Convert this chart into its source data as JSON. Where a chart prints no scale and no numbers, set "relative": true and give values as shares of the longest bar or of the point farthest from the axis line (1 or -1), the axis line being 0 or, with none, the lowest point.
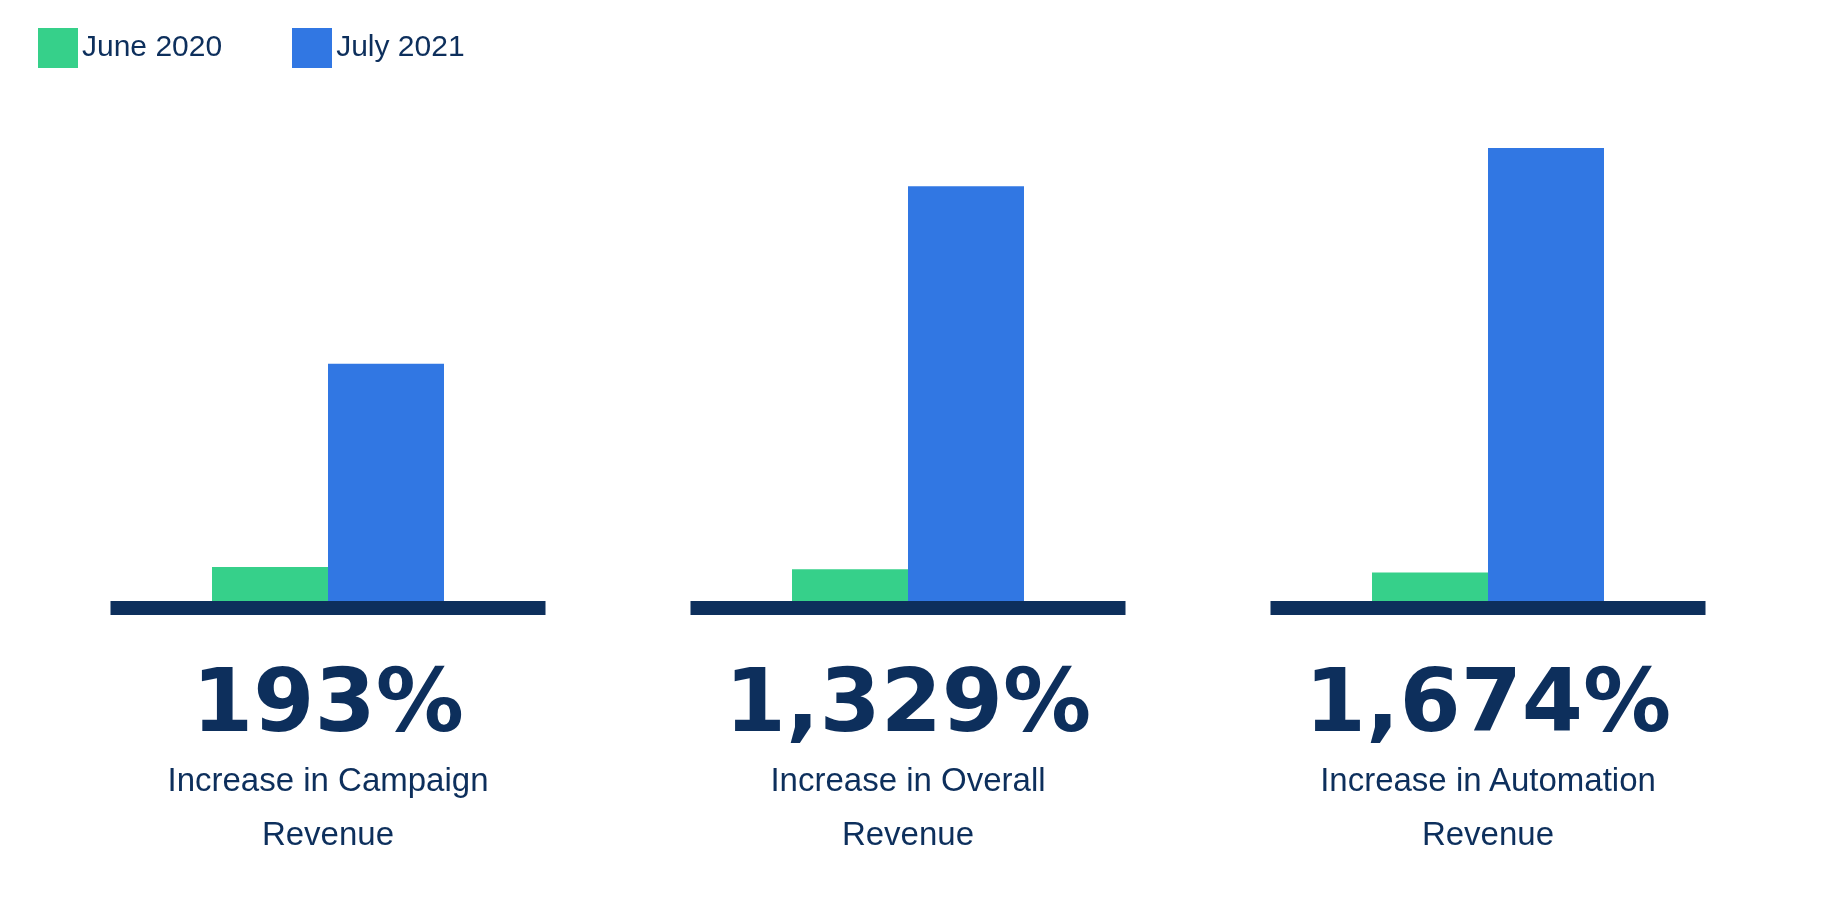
{
  "chart_data": {
    "type": "bar",
    "relative": true,
    "categories": [
      "Increase in Campaign Revenue",
      "Increase in Overall Revenue",
      "Increase in Automation Revenue"
    ],
    "series": [
      {
        "name": "June 2020",
        "color": "#36d08a",
        "values": [
          0.079,
          0.074,
          0.067
        ]
      },
      {
        "name": "July 2021",
        "color": "#3177e3",
        "values": [
          0.526,
          0.916,
          1
        ]
      }
    ],
    "annotations": [
      "193%",
      "1,329%",
      "1,674%"
    ],
    "legend": "top left",
    "grid": false
  }
}
